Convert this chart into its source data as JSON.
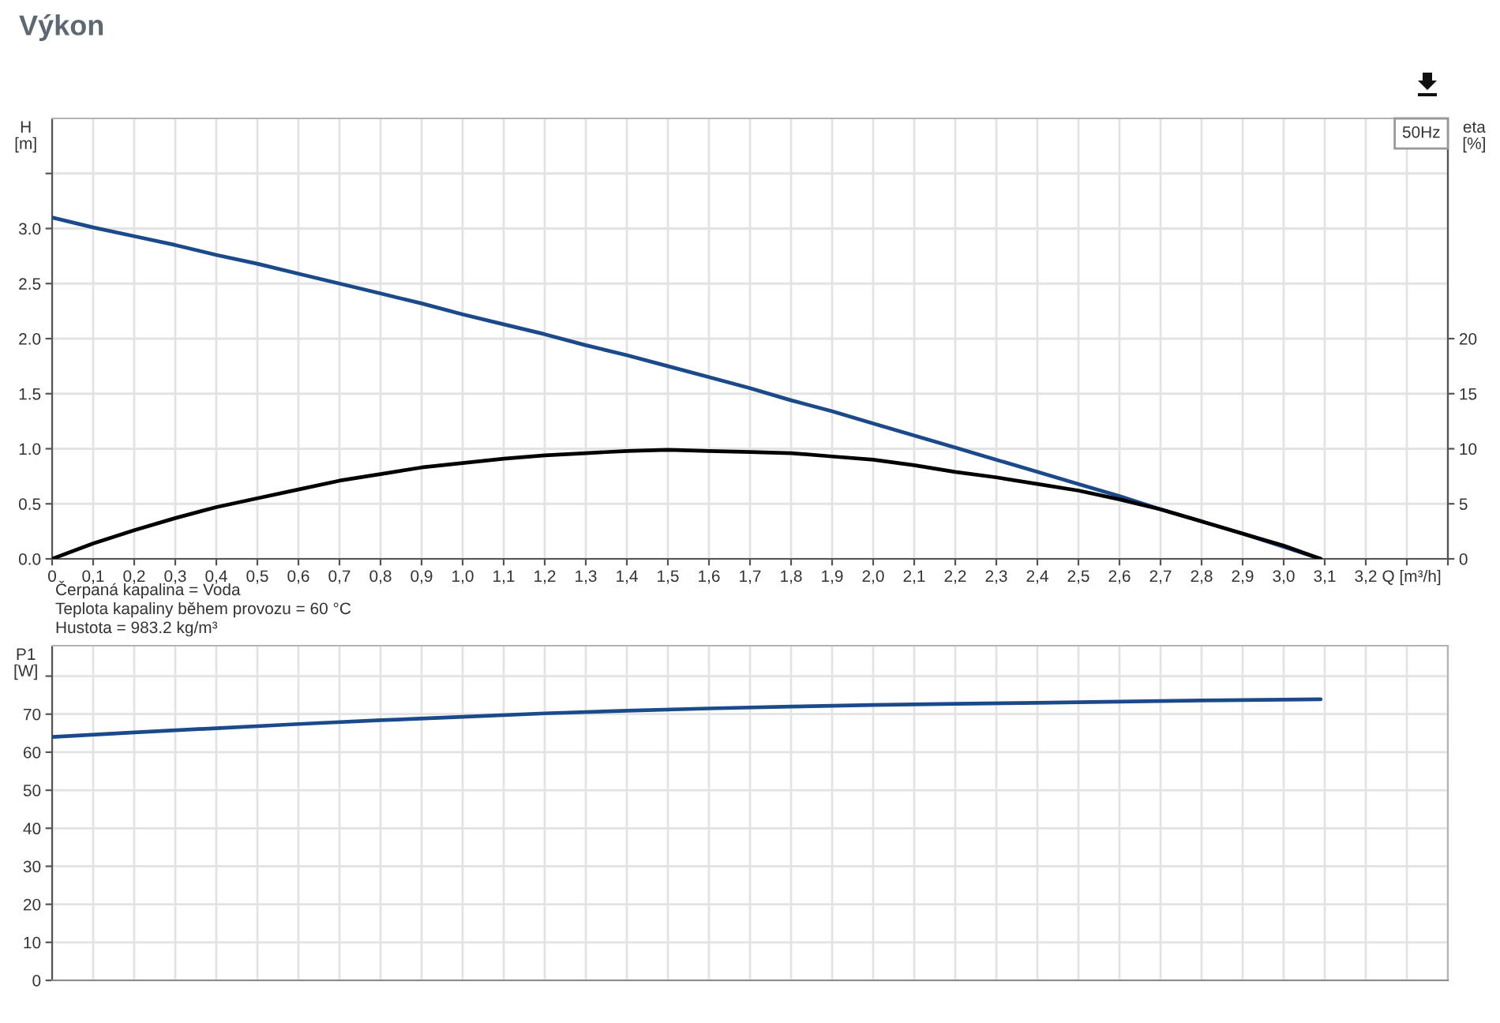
{
  "chart_data": [
    {
      "type": "line",
      "title": "Výkon",
      "ylabel": "H\n[m]",
      "y2label": "eta\n[%]",
      "xlabel": "Q [m³/h]",
      "legend_title": "50Hz",
      "annotations": [
        "Čerpaná kapalina = Voda",
        "Teplota kapaliny během provozu = 60 °C",
        "Hustota = 983.2 kg/m³"
      ],
      "xlim": [
        0,
        3.4
      ],
      "xticks": [
        0,
        {
          "value": 0.1,
          "label": "0,1"
        },
        {
          "value": 0.2,
          "label": "0,2"
        },
        {
          "value": 0.3,
          "label": "0,3"
        },
        {
          "value": 0.4,
          "label": "0,4"
        },
        {
          "value": 0.5,
          "label": "0,5"
        },
        {
          "value": 0.6,
          "label": "0,6"
        },
        {
          "value": 0.7,
          "label": "0,7"
        },
        {
          "value": 0.8,
          "label": "0,8"
        },
        {
          "value": 0.9,
          "label": "0,9"
        },
        {
          "value": 1.0,
          "label": "1,0"
        },
        {
          "value": 1.1,
          "label": "1,1"
        },
        {
          "value": 1.2,
          "label": "1,2"
        },
        {
          "value": 1.3,
          "label": "1,3"
        },
        {
          "value": 1.4,
          "label": "1,4"
        },
        {
          "value": 1.5,
          "label": "1,5"
        },
        {
          "value": 1.6,
          "label": "1,6"
        },
        {
          "value": 1.7,
          "label": "1,7"
        },
        {
          "value": 1.8,
          "label": "1,8"
        },
        {
          "value": 1.9,
          "label": "1,9"
        },
        {
          "value": 2.0,
          "label": "2,0"
        },
        {
          "value": 2.1,
          "label": "2,1"
        },
        {
          "value": 2.2,
          "label": "2,2"
        },
        {
          "value": 2.3,
          "label": "2,3"
        },
        {
          "value": 2.4,
          "label": "2,4"
        },
        {
          "value": 2.5,
          "label": "2,5"
        },
        {
          "value": 2.6,
          "label": "2,6"
        },
        {
          "value": 2.7,
          "label": "2,7"
        },
        {
          "value": 2.8,
          "label": "2,8"
        },
        {
          "value": 2.9,
          "label": "2,9"
        },
        {
          "value": 3.0,
          "label": "3,0"
        },
        {
          "value": 3.1,
          "label": "3,1"
        },
        {
          "value": 3.2,
          "label": "3,2"
        },
        {
          "value": 3.3,
          "label": null
        },
        {
          "value": 3.4,
          "label": null
        }
      ],
      "ylim": [
        0,
        4
      ],
      "yticks": [
        {
          "value": 0,
          "label": "0.0"
        },
        0.5,
        {
          "value": 1,
          "label": "1.0"
        },
        1.5,
        {
          "value": 2,
          "label": "2.0"
        },
        2.5,
        {
          "value": 3,
          "label": "3.0"
        },
        {
          "value": 3.5,
          "label": null
        }
      ],
      "y2lim": [
        0,
        40
      ],
      "y2ticks": [
        0,
        5,
        10,
        15,
        20
      ],
      "grid": true,
      "marker": "none",
      "line_style": "solid",
      "series": [
        {
          "color": "#1b4a8a",
          "x": [
            0,
            0.1,
            0.2,
            0.3,
            0.4,
            0.5,
            0.6,
            0.7,
            0.8,
            0.9,
            1.0,
            1.1,
            1.2,
            1.3,
            1.4,
            1.5,
            1.6,
            1.7,
            1.8,
            1.9,
            2.0,
            2.1,
            2.2,
            2.3,
            2.4,
            2.5,
            2.6,
            2.7,
            2.8,
            2.9,
            3.0,
            3.09
          ],
          "values": [
            3.1,
            3.01,
            2.93,
            2.85,
            2.76,
            2.68,
            2.59,
            2.5,
            2.41,
            2.32,
            2.22,
            2.13,
            2.04,
            1.94,
            1.85,
            1.75,
            1.65,
            1.55,
            1.44,
            1.34,
            1.23,
            1.12,
            1.01,
            0.9,
            0.79,
            0.68,
            0.57,
            0.45,
            0.34,
            0.23,
            0.11,
            0
          ]
        },
        {
          "color": "#000000",
          "axis": "y2",
          "x": [
            0,
            0.1,
            0.2,
            0.3,
            0.4,
            0.5,
            0.6,
            0.7,
            0.8,
            0.9,
            1.0,
            1.1,
            1.2,
            1.3,
            1.4,
            1.5,
            1.6,
            1.7,
            1.8,
            1.9,
            2.0,
            2.1,
            2.2,
            2.3,
            2.4,
            2.5,
            2.6,
            2.7,
            2.8,
            2.9,
            3.0,
            3.09
          ],
          "values": [
            0,
            1.4,
            2.6,
            3.7,
            4.7,
            5.5,
            6.3,
            7.1,
            7.7,
            8.3,
            8.7,
            9.1,
            9.4,
            9.6,
            9.8,
            9.9,
            9.8,
            9.7,
            9.6,
            9.3,
            9.0,
            8.5,
            7.9,
            7.4,
            6.8,
            6.2,
            5.4,
            4.5,
            3.4,
            2.3,
            1.2,
            0
          ]
        }
      ]
    },
    {
      "type": "line",
      "ylabel": "P1\n[W]",
      "xlim": [
        0,
        3.4
      ],
      "xticks": [
        0,
        0.1,
        0.2,
        0.3,
        0.4,
        0.5,
        0.6,
        0.7,
        0.8,
        0.9,
        1.0,
        1.1,
        1.2,
        1.3,
        1.4,
        1.5,
        1.6,
        1.7,
        1.8,
        1.9,
        2.0,
        2.1,
        2.2,
        2.3,
        2.4,
        2.5,
        2.6,
        2.7,
        2.8,
        2.9,
        3.0,
        3.1,
        3.2,
        3.3,
        3.4
      ],
      "ylim": [
        0,
        88
      ],
      "yticks": [
        0,
        10,
        20,
        30,
        40,
        50,
        60,
        70,
        {
          "value": 80,
          "label": null
        }
      ],
      "tick_labels": "y",
      "grid": true,
      "marker": "none",
      "line_style": "solid",
      "series": [
        {
          "color": "#1b4a8a",
          "x": [
            0,
            0.2,
            0.4,
            0.6,
            0.8,
            1.0,
            1.2,
            1.4,
            1.6,
            1.8,
            2.0,
            2.2,
            2.4,
            2.6,
            2.8,
            3.0,
            3.09
          ],
          "values": [
            64.0,
            65.2,
            66.3,
            67.4,
            68.4,
            69.3,
            70.2,
            70.9,
            71.5,
            72.0,
            72.4,
            72.7,
            73.0,
            73.3,
            73.6,
            73.8,
            73.9
          ]
        }
      ]
    }
  ]
}
